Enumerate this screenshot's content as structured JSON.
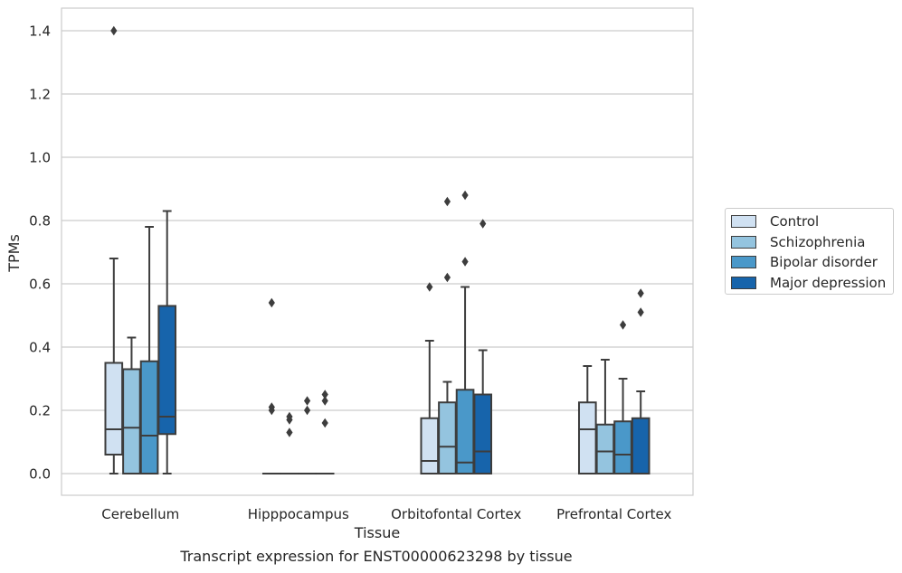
{
  "chart_data": {
    "type": "box",
    "title": "",
    "caption": "Transcript expression for ENST00000623298 by tissue",
    "xlabel": "Tissue",
    "ylabel": "TPMs",
    "ylim": [
      -0.07,
      1.47
    ],
    "yticks": [
      0.0,
      0.2,
      0.4,
      0.6,
      0.8,
      1.0,
      1.2,
      1.4
    ],
    "ytick_labels": [
      "0.0",
      "0.2",
      "0.4",
      "0.6",
      "0.8",
      "1.0",
      "1.2",
      "1.4"
    ],
    "grid": "horizontal",
    "legend_position": "right",
    "categories": [
      "Cerebellum",
      "Hipppocampus",
      "Orbitofontal Cortex",
      "Prefrontal Cortex"
    ],
    "series": [
      {
        "name": "Control",
        "color": "#d0e1f2",
        "boxes": [
          {
            "whisker_low": 0.0,
            "q1": 0.06,
            "median": 0.14,
            "q3": 0.35,
            "whisker_high": 0.68,
            "outliers": [
              1.4
            ]
          },
          {
            "whisker_low": 0.0,
            "q1": 0.0,
            "median": 0.0,
            "q3": 0.0,
            "whisker_high": 0.0,
            "outliers": [
              0.54,
              0.21,
              0.2
            ]
          },
          {
            "whisker_low": 0.0,
            "q1": 0.0,
            "median": 0.04,
            "q3": 0.175,
            "whisker_high": 0.42,
            "outliers": [
              0.59
            ]
          },
          {
            "whisker_low": 0.0,
            "q1": 0.0,
            "median": 0.14,
            "q3": 0.225,
            "whisker_high": 0.34,
            "outliers": []
          }
        ]
      },
      {
        "name": "Schizophrenia",
        "color": "#94c4df",
        "boxes": [
          {
            "whisker_low": 0.0,
            "q1": 0.0,
            "median": 0.145,
            "q3": 0.33,
            "whisker_high": 0.43,
            "outliers": []
          },
          {
            "whisker_low": 0.0,
            "q1": 0.0,
            "median": 0.0,
            "q3": 0.0,
            "whisker_high": 0.0,
            "outliers": [
              0.18,
              0.17,
              0.13
            ]
          },
          {
            "whisker_low": 0.0,
            "q1": 0.0,
            "median": 0.085,
            "q3": 0.225,
            "whisker_high": 0.29,
            "outliers": [
              0.86,
              0.62
            ]
          },
          {
            "whisker_low": 0.0,
            "q1": 0.0,
            "median": 0.07,
            "q3": 0.155,
            "whisker_high": 0.36,
            "outliers": []
          }
        ]
      },
      {
        "name": "Bipolar disorder",
        "color": "#4a98c9",
        "boxes": [
          {
            "whisker_low": 0.0,
            "q1": 0.0,
            "median": 0.12,
            "q3": 0.355,
            "whisker_high": 0.78,
            "outliers": []
          },
          {
            "whisker_low": 0.0,
            "q1": 0.0,
            "median": 0.0,
            "q3": 0.0,
            "whisker_high": 0.0,
            "outliers": [
              0.23,
              0.2
            ]
          },
          {
            "whisker_low": 0.0,
            "q1": 0.0,
            "median": 0.035,
            "q3": 0.265,
            "whisker_high": 0.59,
            "outliers": [
              0.88,
              0.67
            ]
          },
          {
            "whisker_low": 0.0,
            "q1": 0.0,
            "median": 0.06,
            "q3": 0.165,
            "whisker_high": 0.3,
            "outliers": [
              0.47
            ]
          }
        ]
      },
      {
        "name": "Major depression",
        "color": "#1764ab",
        "boxes": [
          {
            "whisker_low": 0.0,
            "q1": 0.125,
            "median": 0.18,
            "q3": 0.53,
            "whisker_high": 0.83,
            "outliers": []
          },
          {
            "whisker_low": 0.0,
            "q1": 0.0,
            "median": 0.0,
            "q3": 0.0,
            "whisker_high": 0.0,
            "outliers": [
              0.25,
              0.23,
              0.16
            ]
          },
          {
            "whisker_low": 0.0,
            "q1": 0.0,
            "median": 0.07,
            "q3": 0.25,
            "whisker_high": 0.39,
            "outliers": [
              0.79
            ]
          },
          {
            "whisker_low": 0.0,
            "q1": 0.0,
            "median": 0.0,
            "q3": 0.175,
            "whisker_high": 0.26,
            "outliers": [
              0.57,
              0.51
            ]
          }
        ]
      }
    ]
  }
}
